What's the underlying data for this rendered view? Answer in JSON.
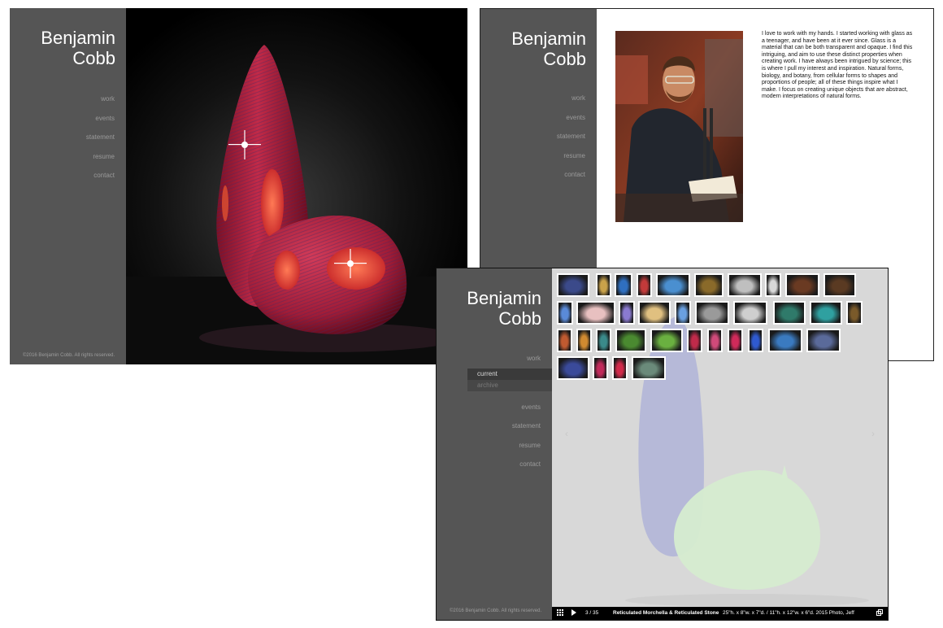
{
  "site": {
    "name_line1": "Benjamin",
    "name_line2": "Cobb",
    "copyright": "©2016 Benjamin Cobb. All rights reserved."
  },
  "nav": {
    "items": [
      "work",
      "events",
      "statement",
      "resume",
      "contact"
    ],
    "work_subitems": [
      "current",
      "archive"
    ]
  },
  "statement": {
    "text": "I love to work with my hands. I started working with glass as a teenager, and have been at it ever since. Glass is a material that can be both transparent and opaque. I find this intriguing, and aim to use these distinct properties when creating work.  I have always been intrigued by science; this is where I pull my interest and inspiration. Natural forms, biology, and botany, from cellular forms to shapes and proportions of people; all of these things inspire what I make. I focus on creating unique objects that are abstract, modern interpretations of natural forms."
  },
  "gallery": {
    "counter": "3 / 35",
    "title": "Reticulated Morchella & Reticulated Stone",
    "caption": "25\"h. x 8\"w. x 7\"d. / 11\"h. x 12\"w. x 6\"d. 2015 Photo, Jeff",
    "prev_arrow": "‹",
    "next_arrow": "›",
    "grid_icon": "grid-icon",
    "play_icon": "play-icon",
    "fullscreen_icon": "fullscreen-icon"
  },
  "colors": {
    "sidebar": "#555555",
    "nav_text": "#9a9a9a",
    "active_sub": "#3a3a3a"
  }
}
